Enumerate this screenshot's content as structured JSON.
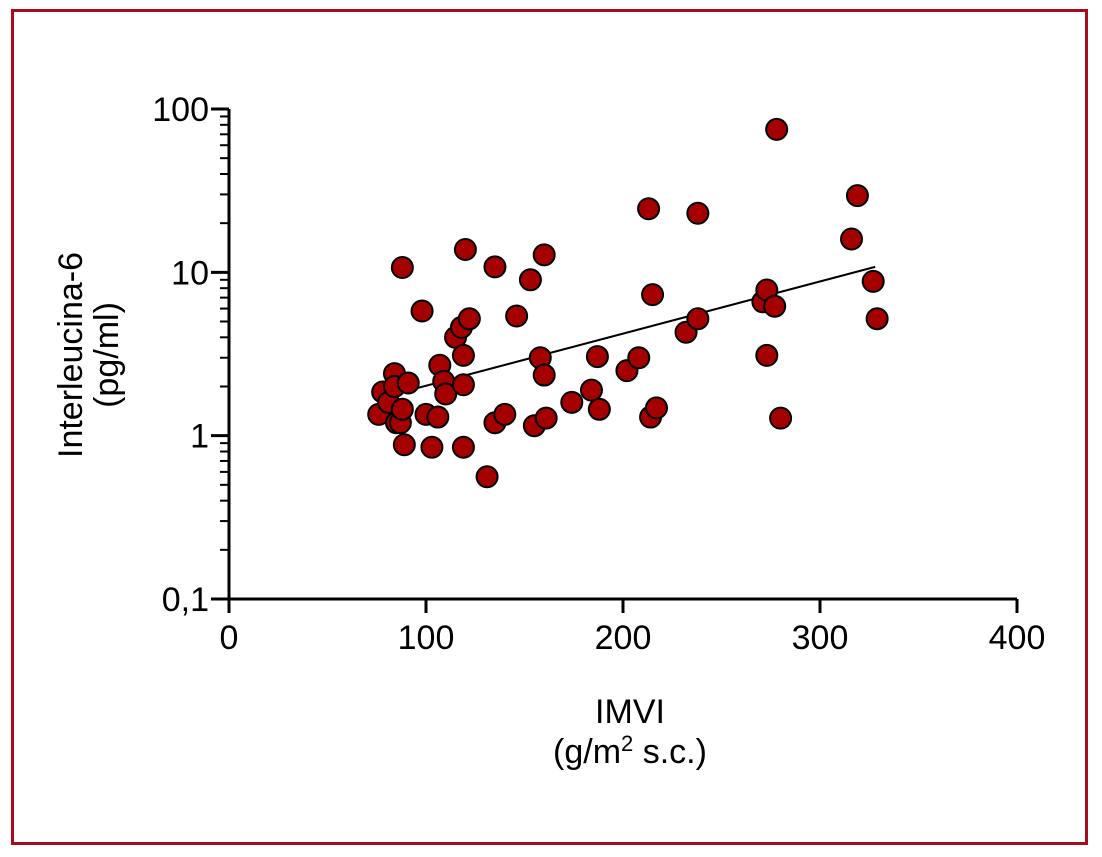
{
  "chart_data": {
    "type": "scatter",
    "xlabel": "IMVI",
    "xlabel_unit_prefix": "(g/m",
    "xlabel_unit_sup": "2",
    "xlabel_unit_suffix": " s.c.)",
    "ylabel": "Interleucina-6",
    "ylabel_unit": "(pg/ml)",
    "x_ticks": [
      "0",
      "100",
      "200",
      "300",
      "400"
    ],
    "y_ticks": [
      "0,1",
      "1",
      "10",
      "100"
    ],
    "xlim": [
      0,
      400
    ],
    "ylim": [
      0.1,
      100
    ],
    "y_scale": "log",
    "grid": false,
    "marker_color": "#a50000",
    "frame_color": "#a50d1f",
    "points": [
      {
        "x": 76,
        "y": 1.35
      },
      {
        "x": 78,
        "y": 1.85
      },
      {
        "x": 81,
        "y": 1.6
      },
      {
        "x": 84,
        "y": 2.4
      },
      {
        "x": 84,
        "y": 2.0
      },
      {
        "x": 85,
        "y": 1.2
      },
      {
        "x": 87,
        "y": 1.2
      },
      {
        "x": 88,
        "y": 1.45
      },
      {
        "x": 88,
        "y": 10.7
      },
      {
        "x": 89,
        "y": 0.88
      },
      {
        "x": 91,
        "y": 2.1
      },
      {
        "x": 98,
        "y": 5.8
      },
      {
        "x": 100,
        "y": 1.35
      },
      {
        "x": 103,
        "y": 0.85
      },
      {
        "x": 106,
        "y": 1.3
      },
      {
        "x": 107,
        "y": 2.7
      },
      {
        "x": 109,
        "y": 2.15
      },
      {
        "x": 110,
        "y": 1.8
      },
      {
        "x": 115,
        "y": 4.0
      },
      {
        "x": 118,
        "y": 4.6
      },
      {
        "x": 119,
        "y": 3.1
      },
      {
        "x": 119,
        "y": 2.05
      },
      {
        "x": 119,
        "y": 0.85
      },
      {
        "x": 120,
        "y": 13.8
      },
      {
        "x": 122,
        "y": 5.2
      },
      {
        "x": 131,
        "y": 0.56
      },
      {
        "x": 135,
        "y": 10.8
      },
      {
        "x": 135,
        "y": 1.2
      },
      {
        "x": 140,
        "y": 1.35
      },
      {
        "x": 146,
        "y": 5.4
      },
      {
        "x": 153,
        "y": 9.0
      },
      {
        "x": 155,
        "y": 1.15
      },
      {
        "x": 158,
        "y": 3.0
      },
      {
        "x": 160,
        "y": 12.8
      },
      {
        "x": 160,
        "y": 2.35
      },
      {
        "x": 161,
        "y": 1.28
      },
      {
        "x": 174,
        "y": 1.6
      },
      {
        "x": 184,
        "y": 1.9
      },
      {
        "x": 187,
        "y": 3.05
      },
      {
        "x": 188,
        "y": 1.45
      },
      {
        "x": 202,
        "y": 2.5
      },
      {
        "x": 208,
        "y": 3.0
      },
      {
        "x": 213,
        "y": 24.5
      },
      {
        "x": 214,
        "y": 1.3
      },
      {
        "x": 215,
        "y": 7.3
      },
      {
        "x": 217,
        "y": 1.48
      },
      {
        "x": 232,
        "y": 4.3
      },
      {
        "x": 238,
        "y": 23.0
      },
      {
        "x": 238,
        "y": 5.2
      },
      {
        "x": 271,
        "y": 6.6
      },
      {
        "x": 273,
        "y": 7.8
      },
      {
        "x": 273,
        "y": 3.1
      },
      {
        "x": 277,
        "y": 6.2
      },
      {
        "x": 278,
        "y": 75.0
      },
      {
        "x": 280,
        "y": 1.28
      },
      {
        "x": 316,
        "y": 16.0
      },
      {
        "x": 319,
        "y": 29.5
      },
      {
        "x": 327,
        "y": 8.8
      },
      {
        "x": 329,
        "y": 5.2
      }
    ],
    "trendline": {
      "x": [
        88,
        328
      ],
      "y": [
        1.85,
        10.8
      ]
    }
  }
}
